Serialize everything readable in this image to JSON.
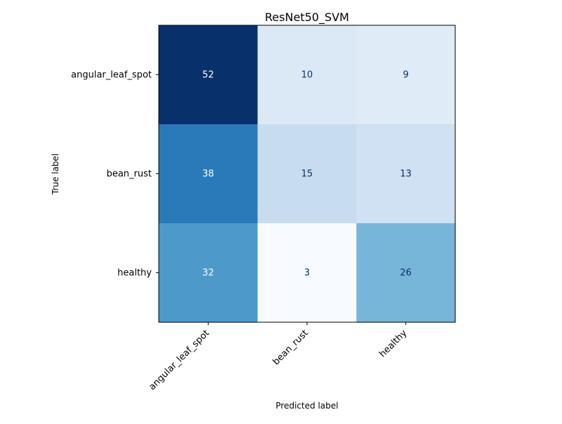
{
  "chart_data": {
    "type": "heatmap",
    "title": "ResNet50_SVM",
    "xlabel": "Predicted label",
    "ylabel": "True label",
    "x_categories": [
      "angular_leaf_spot",
      "bean_rust",
      "healthy"
    ],
    "y_categories": [
      "angular_leaf_spot",
      "bean_rust",
      "healthy"
    ],
    "values": [
      [
        52,
        10,
        9
      ],
      [
        38,
        15,
        13
      ],
      [
        32,
        3,
        26
      ]
    ],
    "colormap": "Blues",
    "vmin": 3,
    "vmax": 52,
    "grid": false,
    "colors": {
      "text_light": "#ffffff",
      "text_dark": "#08306b",
      "axis": "#000000"
    }
  }
}
